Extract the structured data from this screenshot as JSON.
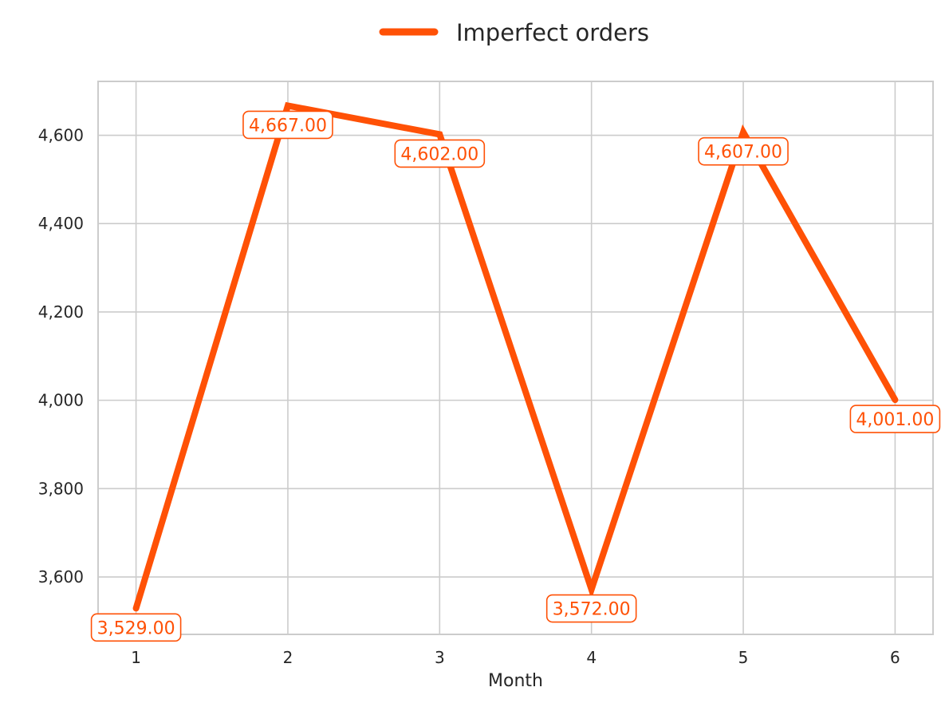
{
  "chart_data": {
    "type": "line",
    "x": [
      1,
      2,
      3,
      4,
      5,
      6
    ],
    "series": [
      {
        "name": "Imperfect orders",
        "values": [
          3529,
          4667,
          4602,
          3572,
          4607,
          4001
        ],
        "color": "#FF5106"
      }
    ],
    "data_labels": [
      "3,529.00",
      "4,667.00",
      "4,602.00",
      "3,572.00",
      "4,607.00",
      "4,001.00"
    ],
    "xlabel": "Month",
    "ylabel": "",
    "x_ticks": [
      "1",
      "2",
      "3",
      "4",
      "5",
      "6"
    ],
    "y_ticks": [
      3600,
      3800,
      4000,
      4200,
      4400,
      4600
    ],
    "y_tick_labels": [
      "3,600",
      "3,800",
      "4,000",
      "4,200",
      "4,400",
      "4,600"
    ],
    "xlim": [
      0.75,
      6.25
    ],
    "ylim": [
      3470,
      4722
    ],
    "grid": true,
    "legend_position": "top-center"
  }
}
